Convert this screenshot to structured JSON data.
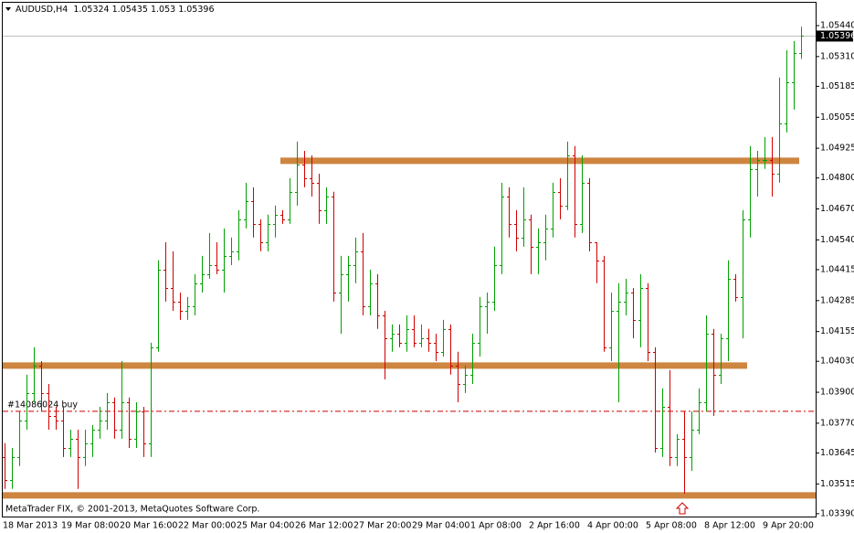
{
  "chart_data": {
    "type": "ohlc",
    "symbol": "AUDUSD,H4",
    "categories": [
      "18 Mar 2013",
      null,
      null,
      null,
      null,
      null,
      null,
      null,
      "19 Mar 08:00",
      null,
      null,
      null,
      null,
      null,
      null,
      null,
      "20 Mar 16:00",
      null,
      null,
      null,
      null,
      null,
      null,
      null,
      "22 Mar 00:00",
      null,
      null,
      null,
      null,
      null,
      null,
      null,
      "25 Mar 04:00",
      null,
      null,
      null,
      null,
      null,
      null,
      null,
      "26 Mar 12:00",
      null,
      null,
      null,
      null,
      null,
      null,
      null,
      "27 Mar 20:00",
      null,
      null,
      null,
      null,
      null,
      null,
      null,
      "29 Mar 04:00",
      null,
      null,
      null,
      null,
      null,
      null,
      null,
      "1 Apr 08:00",
      null,
      null,
      null,
      null,
      null,
      null,
      null,
      "2 Apr 16:00",
      null,
      null,
      null,
      null,
      null,
      null,
      null,
      "4 Apr 00:00",
      null,
      null,
      null,
      null,
      null,
      null,
      null,
      "5 Apr 08:00",
      null,
      null,
      null,
      null,
      null,
      null,
      null,
      "8 Apr 12:00",
      null,
      null,
      null,
      null,
      null,
      null,
      null,
      "9 Apr 20:00",
      null,
      null,
      null,
      null,
      null
    ],
    "open": [
      1.03628,
      1.03532,
      1.03628,
      1.03782,
      1.03897,
      1.04012,
      1.03897,
      1.03801,
      1.03782,
      1.03666,
      1.03705,
      1.03628,
      1.03686,
      1.03743,
      1.03782,
      1.03858,
      1.03743,
      1.03858,
      1.03705,
      1.0382,
      1.03686,
      1.04089,
      1.04415,
      1.04338,
      1.04281,
      1.04242,
      1.04262,
      1.04358,
      1.04396,
      1.04434,
      1.04415,
      1.04473,
      1.04492,
      1.04626,
      1.04703,
      1.04607,
      1.0453,
      1.04607,
      1.04646,
      1.04626,
      1.04742,
      1.04857,
      1.04799,
      1.0478,
      1.04665,
      1.04722,
      1.04319,
      1.04396,
      1.04434,
      1.04492,
      1.04262,
      1.04358,
      1.04223,
      1.04127,
      1.04146,
      1.04108,
      1.04166,
      1.04108,
      1.04127,
      1.04108,
      1.0407,
      1.04166,
      1.04012,
      1.03935,
      1.03974,
      1.04108,
      1.04262,
      1.04281,
      1.04434,
      1.04722,
      1.04607,
      1.0455,
      1.04626,
      1.04511,
      1.0453,
      1.04588,
      1.04742,
      1.04684,
      1.04895,
      1.04607,
      1.0478,
      1.0453,
      1.04454,
      1.04089,
      1.04242,
      1.04281,
      1.04319,
      1.04204,
      1.04338,
      1.0407,
      1.03666,
      1.03839,
      1.03628,
      1.03705,
      1.03628,
      1.03743,
      1.03858,
      1.04146,
      1.03974,
      1.04127,
      1.04377,
      1.043,
      1.04626,
      1.04838,
      1.04876,
      1.04876,
      1.04818,
      1.0503,
      1.05202,
      1.05324
    ],
    "high": [
      1.03686,
      1.03666,
      1.0382,
      1.03974,
      1.04089,
      1.04031,
      1.03935,
      1.03839,
      1.03839,
      1.03743,
      1.03743,
      1.03743,
      1.03762,
      1.03839,
      1.03897,
      1.03878,
      1.04031,
      1.03878,
      1.03858,
      1.03839,
      1.04108,
      1.04454,
      1.0453,
      1.04492,
      1.04319,
      1.043,
      1.04396,
      1.04473,
      1.04569,
      1.0453,
      1.04588,
      1.0455,
      1.04665,
      1.0478,
      1.04761,
      1.04626,
      1.04646,
      1.04684,
      1.04665,
      1.04799,
      1.04953,
      1.04914,
      1.04895,
      1.04818,
      1.04761,
      1.04742,
      1.04473,
      1.04473,
      1.0455,
      1.04569,
      1.04415,
      1.04396,
      1.04242,
      1.04185,
      1.04185,
      1.04223,
      1.04223,
      1.04185,
      1.04166,
      1.04146,
      1.04204,
      1.04185,
      1.0407,
      1.04012,
      1.04146,
      1.043,
      1.04319,
      1.04511,
      1.0478,
      1.04761,
      1.04665,
      1.04761,
      1.04646,
      1.04588,
      1.04646,
      1.0478,
      1.04799,
      1.04953,
      1.04934,
      1.04895,
      1.04799,
      1.0453,
      1.04473,
      1.04319,
      1.04358,
      1.04377,
      1.04338,
      1.04396,
      1.04358,
      1.04089,
      1.03916,
      1.03993,
      1.03724,
      1.0382,
      1.0382,
      1.03916,
      1.04223,
      1.04166,
      1.04146,
      1.04454,
      1.04396,
      1.04665,
      1.04934,
      1.04914,
      1.04972,
      1.04972,
      1.05222,
      1.05337,
      1.05375,
      1.05435
    ],
    "low": [
      1.03494,
      1.03494,
      1.0359,
      1.03743,
      1.03858,
      1.0382,
      1.03743,
      1.03743,
      1.03628,
      1.03628,
      1.03494,
      1.0359,
      1.03628,
      1.03705,
      1.03743,
      1.03705,
      1.03705,
      1.03666,
      1.03666,
      1.03628,
      1.03628,
      1.0407,
      1.04281,
      1.04242,
      1.04204,
      1.04204,
      1.04223,
      1.04319,
      1.04377,
      1.04396,
      1.04319,
      1.04434,
      1.04454,
      1.04588,
      1.0455,
      1.04492,
      1.04492,
      1.0455,
      1.04607,
      1.04607,
      1.04684,
      1.04761,
      1.04722,
      1.04607,
      1.04607,
      1.04281,
      1.04146,
      1.04281,
      1.04358,
      1.04223,
      1.04223,
      1.04166,
      1.03954,
      1.0407,
      1.04089,
      1.0407,
      1.04089,
      1.04089,
      1.0407,
      1.04031,
      1.0405,
      1.03974,
      1.03858,
      1.03897,
      1.03935,
      1.0405,
      1.04146,
      1.04242,
      1.04396,
      1.0455,
      1.04492,
      1.04511,
      1.04396,
      1.04396,
      1.04454,
      1.0455,
      1.04626,
      1.04665,
      1.0455,
      1.04569,
      1.04492,
      1.04358,
      1.0407,
      1.04031,
      1.03858,
      1.04223,
      1.04127,
      1.04089,
      1.04031,
      1.03647,
      1.03628,
      1.0359,
      1.0359,
      1.03474,
      1.0357,
      1.03724,
      1.0382,
      1.03801,
      1.03935,
      1.04031,
      1.04281,
      1.04127,
      1.0455,
      1.04722,
      1.04838,
      1.04722,
      1.0478,
      1.04991,
      1.05087,
      1.053
    ],
    "close": [
      1.03532,
      1.03628,
      1.03782,
      1.03897,
      1.04012,
      1.03897,
      1.03801,
      1.03782,
      1.03666,
      1.03705,
      1.03628,
      1.03686,
      1.03743,
      1.03782,
      1.03858,
      1.03743,
      1.03858,
      1.03705,
      1.0382,
      1.03686,
      1.04089,
      1.04415,
      1.04338,
      1.04281,
      1.04242,
      1.04262,
      1.04358,
      1.04396,
      1.04434,
      1.04415,
      1.04473,
      1.04492,
      1.04626,
      1.04703,
      1.04607,
      1.0453,
      1.04607,
      1.04646,
      1.04626,
      1.04742,
      1.04857,
      1.04799,
      1.0478,
      1.04665,
      1.04722,
      1.04319,
      1.04396,
      1.04434,
      1.04492,
      1.04262,
      1.04358,
      1.04223,
      1.04127,
      1.04146,
      1.04108,
      1.04166,
      1.04108,
      1.04127,
      1.04108,
      1.0407,
      1.04166,
      1.04012,
      1.03935,
      1.03974,
      1.04108,
      1.04262,
      1.04281,
      1.04434,
      1.04722,
      1.04607,
      1.0455,
      1.04626,
      1.04511,
      1.0453,
      1.04588,
      1.04742,
      1.04684,
      1.04895,
      1.04607,
      1.0478,
      1.0453,
      1.04454,
      1.04089,
      1.04242,
      1.04281,
      1.04319,
      1.04204,
      1.04338,
      1.0407,
      1.03666,
      1.03839,
      1.03628,
      1.03705,
      1.03628,
      1.03743,
      1.03858,
      1.04146,
      1.03974,
      1.04127,
      1.04377,
      1.043,
      1.04626,
      1.04838,
      1.04876,
      1.04876,
      1.04818,
      1.0503,
      1.05202,
      1.05324,
      1.05396
    ],
    "up_color": "#00a000",
    "down_color": "#d00000",
    "ylim": [
      1.03378,
      1.05536
    ],
    "yticks": [
      {
        "value": 1.0544,
        "label": "1.05440"
      },
      {
        "value": 1.0531,
        "label": "1.05310"
      },
      1.05185,
      1.05055,
      1.04925,
      {
        "value": 1.048,
        "label": "1.04800"
      },
      {
        "value": 1.0467,
        "label": "1.04670"
      },
      {
        "value": 1.0454,
        "label": "1.04540"
      },
      1.04415,
      1.04285,
      1.04155,
      {
        "value": 1.0403,
        "label": "1.04030"
      },
      {
        "value": 1.039,
        "label": "1.03900"
      },
      {
        "value": 1.0377,
        "label": "1.03770"
      },
      1.03645,
      1.03515,
      {
        "value": 1.0339,
        "label": "1.03390"
      }
    ],
    "hlines": [
      {
        "value": 1.04872,
        "color": "#cd8540"
      },
      {
        "value": 1.04012,
        "color": "#cd8540"
      },
      {
        "value": 1.03467,
        "color": "#cd8540"
      }
    ],
    "order": {
      "label": "#14086024 buy",
      "value": 1.0382,
      "color": "#d00000"
    },
    "footer": "MetaTrader FIX, © 2001-2013, MetaQuotes Software Corp."
  }
}
